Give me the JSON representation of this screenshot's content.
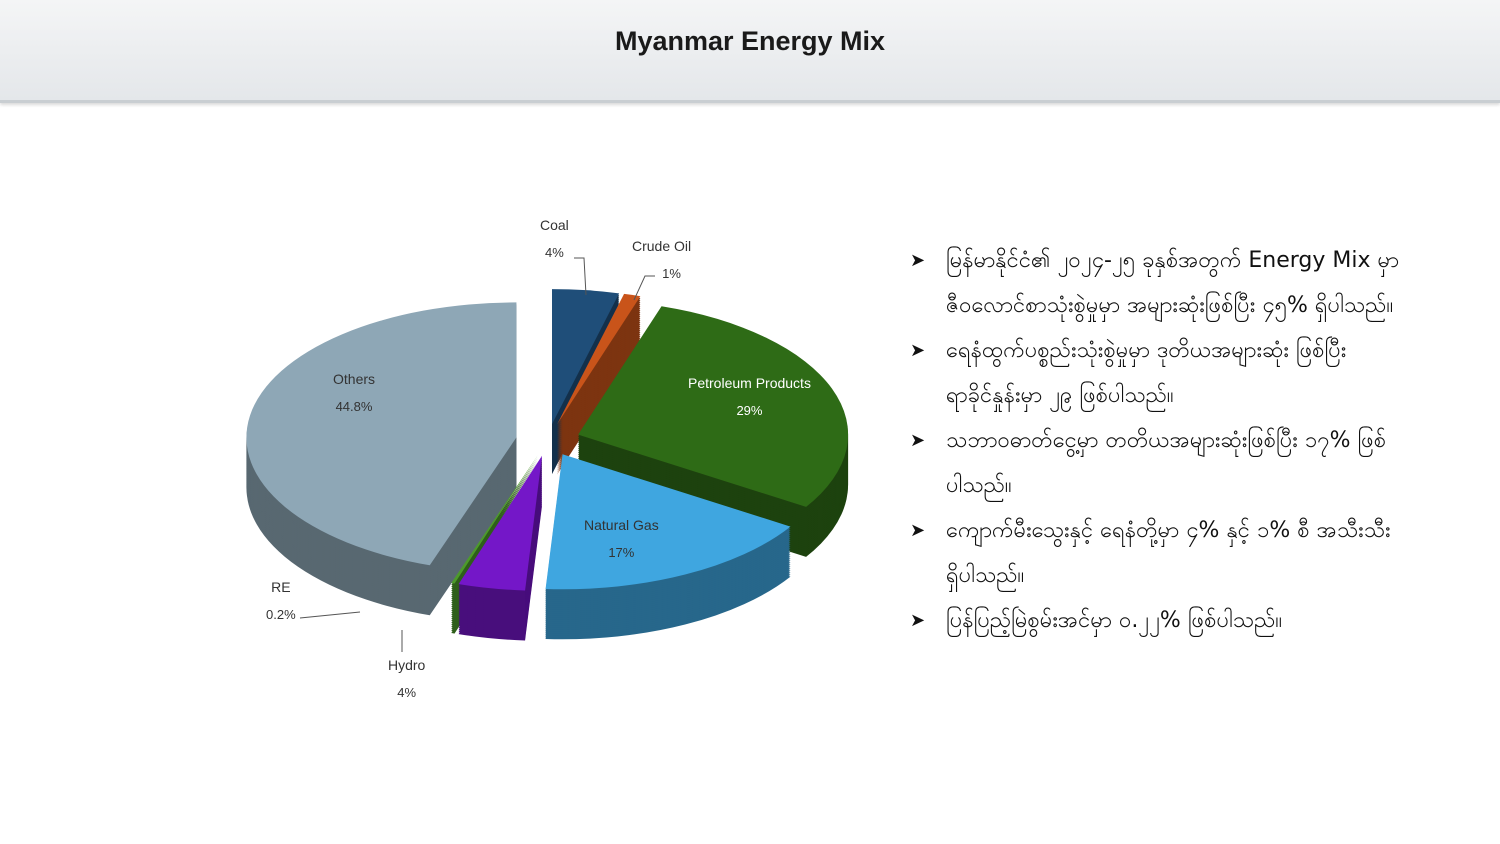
{
  "header": {
    "title": "Myanmar Energy Mix"
  },
  "chart_data": {
    "type": "pie",
    "style": "3d-exploded",
    "title": "",
    "slices": [
      {
        "name": "Coal",
        "label": "4%",
        "value": 4,
        "color": "#1f4e79"
      },
      {
        "name": "Crude Oil",
        "label": "1%",
        "value": 1,
        "color": "#c9541a"
      },
      {
        "name": "Petroleum  Products",
        "label": "29%",
        "value": 29,
        "color": "#2e6b16"
      },
      {
        "name": "Natural Gas",
        "label": "17%",
        "value": 17,
        "color": "#3fa6e0"
      },
      {
        "name": "Hydro",
        "label": "4%",
        "value": 4,
        "color": "#7417c8"
      },
      {
        "name": "RE",
        "label": "0.2%",
        "value": 0.2,
        "color": "#4c9a2a"
      },
      {
        "name": "Others",
        "label": "44.8%",
        "value": 44.8,
        "color": "#8ea7b6"
      }
    ]
  },
  "bullets": [
    "မြန်မာနိုင်ငံ၏ ၂၀၂၄-၂၅ ခုနှစ်အတွက် Energy Mix မှာ ဇီဝလောင်စာသုံးစွဲမှုမှာ အများဆုံးဖြစ်ပြီး ၄၅% ရှိပါသည်။",
    "ရေနံထွက်ပစ္စည်းသုံးစွဲမှုမှာ ဒုတိယအများဆုံး ဖြစ်ပြီး ရာခိုင်နှုန်းမှာ ၂၉ ဖြစ်ပါသည်။",
    "သဘာဝဓာတ်ငွေ့မှာ တတိယအများဆုံးဖြစ်ပြီး ၁၇% ဖြစ်ပါသည်။",
    "ကျောက်မီးသွေးနှင့် ရေနံတို့မှာ ၄% နှင့် ၁% စီ အသီးသီး ရှိပါသည်။",
    "ပြန်ပြည့်မြဲစွမ်းအင်မှာ ၀.၂၂% ဖြစ်ပါသည်။"
  ],
  "bullet_icon": "arrowhead-bullet"
}
